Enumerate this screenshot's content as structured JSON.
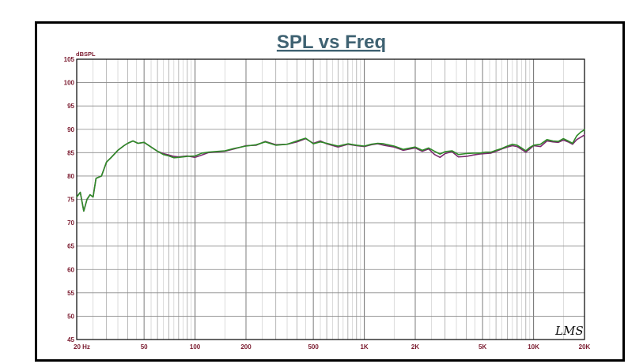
{
  "chart_data": {
    "type": "line",
    "title": "SPL vs Freq",
    "ylabel": "dBSPL",
    "xlabel": "",
    "x_scale": "log",
    "xlim": [
      20,
      20000
    ],
    "ylim": [
      45,
      105
    ],
    "grid": true,
    "y_ticks": [
      "105",
      "100",
      "95",
      "90",
      "85",
      "80",
      "75",
      "70",
      "65",
      "60",
      "55",
      "50",
      "45"
    ],
    "x_ticks": [
      {
        "value": 20,
        "label": "20  Hz"
      },
      {
        "value": 50,
        "label": "50"
      },
      {
        "value": 100,
        "label": "100"
      },
      {
        "value": 200,
        "label": "200"
      },
      {
        "value": 500,
        "label": "500"
      },
      {
        "value": 1000,
        "label": "1K"
      },
      {
        "value": 2000,
        "label": "2K"
      },
      {
        "value": 5000,
        "label": "5K"
      },
      {
        "value": 10000,
        "label": "10K"
      },
      {
        "value": 20000,
        "label": "20K"
      }
    ],
    "watermark": "LMS",
    "series": [
      {
        "color": "#7a2a6e",
        "x": [
          20,
          21,
          22,
          23,
          24,
          25,
          26,
          28,
          30,
          32,
          35,
          38,
          40,
          43,
          46,
          50,
          55,
          60,
          65,
          70,
          75,
          80,
          90,
          100,
          110,
          120,
          130,
          150,
          170,
          200,
          230,
          260,
          300,
          350,
          400,
          450,
          500,
          550,
          600,
          700,
          800,
          900,
          1000,
          1100,
          1200,
          1300,
          1500,
          1700,
          2000,
          2200,
          2400,
          2600,
          2800,
          3000,
          3300,
          3600,
          4000,
          4400,
          4800,
          5200,
          5600,
          6000,
          6500,
          7000,
          7500,
          8000,
          8500,
          9000,
          9500,
          10000,
          11000,
          12000,
          13000,
          14000,
          15000,
          16000,
          17000,
          18000,
          19000,
          20000
        ],
        "y": [
          75.5,
          76.5,
          72.5,
          75,
          76,
          75.5,
          79.5,
          80,
          83,
          84,
          85.5,
          86.5,
          87,
          87.5,
          87,
          87.2,
          86.2,
          85.3,
          84.8,
          84.5,
          84.2,
          84.1,
          84.3,
          84,
          84.5,
          85,
          85.1,
          85.3,
          85.8,
          86.5,
          86.6,
          87.4,
          86.7,
          86.8,
          87.3,
          88,
          87,
          87.5,
          86.9,
          86.2,
          86.8,
          86.5,
          86.3,
          86.7,
          86.9,
          86.6,
          86.2,
          85.5,
          86,
          85.3,
          85.8,
          84.6,
          84,
          84.8,
          85.2,
          84.1,
          84.2,
          84.5,
          84.7,
          84.8,
          84.9,
          85.3,
          85.8,
          86.2,
          86.5,
          86.3,
          85.7,
          85.1,
          85.8,
          86.5,
          86.3,
          87.5,
          87.3,
          87.2,
          87.7,
          87.3,
          86.8,
          87.8,
          88.3,
          88.8
        ]
      },
      {
        "color": "#2e8b27",
        "x": [
          20,
          21,
          22,
          23,
          24,
          25,
          26,
          28,
          30,
          32,
          35,
          38,
          40,
          43,
          46,
          50,
          55,
          60,
          65,
          70,
          75,
          80,
          90,
          100,
          110,
          120,
          130,
          150,
          170,
          200,
          230,
          260,
          300,
          350,
          400,
          450,
          500,
          550,
          600,
          700,
          800,
          900,
          1000,
          1100,
          1200,
          1300,
          1500,
          1700,
          2000,
          2200,
          2400,
          2600,
          2800,
          3000,
          3300,
          3600,
          4000,
          4400,
          4800,
          5200,
          5600,
          6000,
          6500,
          7000,
          7500,
          8000,
          8500,
          9000,
          9500,
          10000,
          11000,
          12000,
          13000,
          14000,
          15000,
          16000,
          17000,
          18000,
          19000,
          20000
        ],
        "y": [
          75.5,
          76.5,
          72.5,
          75,
          76,
          75.5,
          79.5,
          80,
          83,
          84,
          85.5,
          86.5,
          87,
          87.5,
          87,
          87.2,
          86.2,
          85.3,
          84.6,
          84.3,
          83.9,
          84,
          84.2,
          84.3,
          84.9,
          85.1,
          85.2,
          85.4,
          85.9,
          86.4,
          86.7,
          87.3,
          86.6,
          86.8,
          87.5,
          88.1,
          86.9,
          87.3,
          87,
          86.4,
          86.9,
          86.6,
          86.4,
          86.8,
          87,
          86.9,
          86.4,
          85.7,
          86.2,
          85.5,
          86,
          85.3,
          84.7,
          85.2,
          85.4,
          84.6,
          84.8,
          84.9,
          84.9,
          85.1,
          85.1,
          85.5,
          85.9,
          86.4,
          86.8,
          86.6,
          86,
          85.4,
          86.1,
          86.6,
          86.8,
          87.8,
          87.5,
          87.4,
          88,
          87.5,
          87,
          88.6,
          89.4,
          89.9
        ]
      }
    ]
  }
}
